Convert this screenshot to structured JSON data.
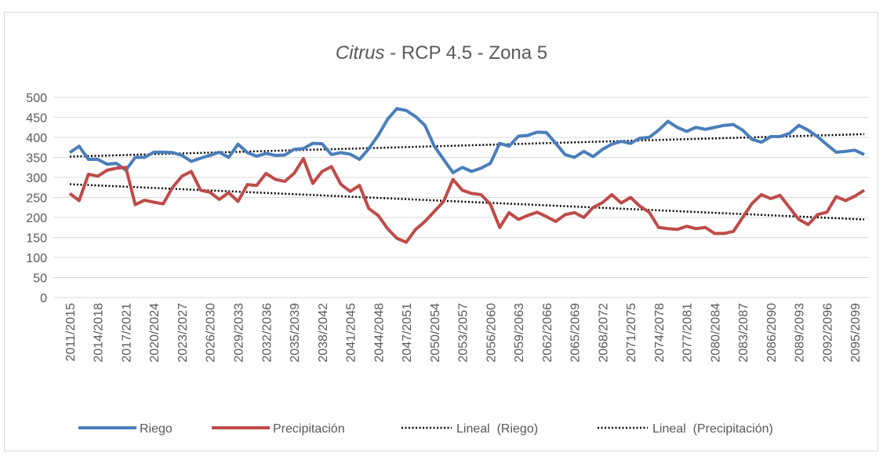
{
  "chart_data": {
    "type": "line",
    "title": {
      "italic": "Citrus",
      "rest": " - RCP 4.5 - Zona 5"
    },
    "categories": [
      "2011/2015",
      null,
      null,
      "2014/2018",
      null,
      null,
      "2017/2021",
      null,
      null,
      "2020/2024",
      null,
      null,
      "2023/2027",
      null,
      null,
      "2026/2030",
      null,
      null,
      "2029/2033",
      null,
      null,
      "2032/2036",
      null,
      null,
      "2035/2039",
      null,
      null,
      "2038/2042",
      null,
      null,
      "2041/2045",
      null,
      null,
      "2044/2048",
      null,
      null,
      "2047/2051",
      null,
      null,
      "2050/2054",
      null,
      null,
      "2053/2057",
      null,
      null,
      "2056/2060",
      null,
      null,
      "2059/2063",
      null,
      null,
      "2062/2066",
      null,
      null,
      "2065/2069",
      null,
      null,
      "2068/2072",
      null,
      null,
      "2071/2075",
      null,
      null,
      "2074/2078",
      null,
      null,
      "2077/2081",
      null,
      null,
      "2080/2084",
      null,
      null,
      "2083/2087",
      null,
      null,
      "2086/2090",
      null,
      null,
      "2089/2093",
      null,
      null,
      "2092/2096",
      null,
      null,
      "2095/2099",
      null
    ],
    "series": [
      {
        "name": "Riego",
        "color": "#4a7ebb",
        "values": [
          362,
          378,
          345,
          345,
          333,
          335,
          318,
          350,
          350,
          363,
          363,
          362,
          355,
          340,
          348,
          355,
          363,
          350,
          383,
          362,
          353,
          360,
          355,
          356,
          370,
          372,
          385,
          384,
          357,
          362,
          358,
          345,
          372,
          405,
          445,
          472,
          467,
          452,
          430,
          378,
          345,
          312,
          325,
          315,
          323,
          335,
          385,
          378,
          403,
          405,
          413,
          412,
          385,
          357,
          350,
          365,
          352,
          370,
          383,
          390,
          385,
          398,
          400,
          418,
          440,
          425,
          415,
          425,
          420,
          425,
          430,
          432,
          418,
          395,
          388,
          402,
          402,
          410,
          430,
          418,
          402,
          382,
          363,
          365,
          368,
          357
        ]
      },
      {
        "name": "Precipitación",
        "color": "#be4b48",
        "values": [
          260,
          242,
          308,
          303,
          318,
          323,
          325,
          232,
          243,
          238,
          234,
          275,
          303,
          315,
          268,
          263,
          245,
          262,
          240,
          282,
          280,
          310,
          295,
          290,
          310,
          347,
          285,
          315,
          327,
          283,
          265,
          280,
          222,
          205,
          172,
          148,
          138,
          170,
          190,
          215,
          240,
          295,
          268,
          260,
          257,
          233,
          175,
          212,
          195,
          205,
          213,
          202,
          190,
          207,
          212,
          200,
          225,
          237,
          257,
          236,
          250,
          228,
          213,
          175,
          172,
          170,
          178,
          172,
          175,
          160,
          160,
          165,
          200,
          235,
          257,
          247,
          255,
          225,
          195,
          182,
          207,
          213,
          252,
          242,
          253,
          268
        ]
      }
    ],
    "trendlines": [
      {
        "name": "Lineal  (Riego)",
        "color": "#000000",
        "values": [
          352,
          408
        ]
      },
      {
        "name": "Lineal  (Precipitación)",
        "color": "#000000",
        "values": [
          283,
          195
        ]
      }
    ],
    "ylim": [
      0,
      500
    ],
    "yticks": [
      0,
      50,
      100,
      150,
      200,
      250,
      300,
      350,
      400,
      450,
      500
    ],
    "grid": true,
    "legend": "bottom"
  }
}
